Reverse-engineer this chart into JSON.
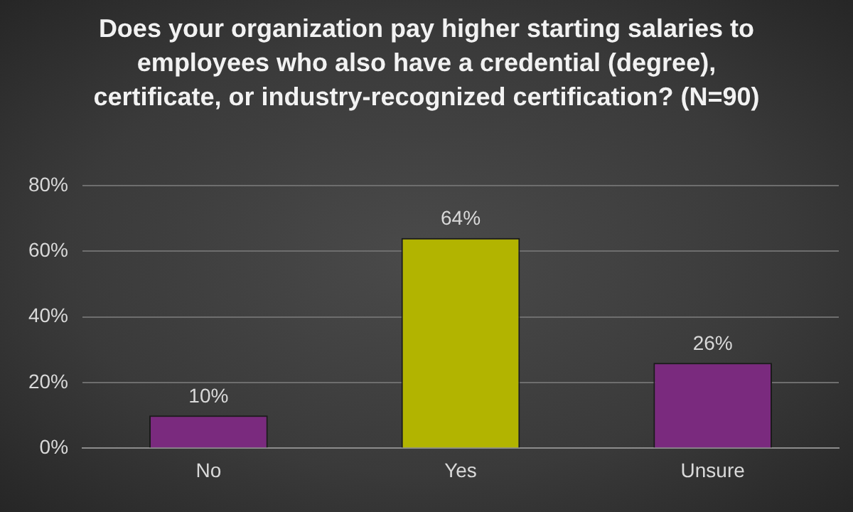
{
  "chart_data": {
    "type": "bar",
    "title": "Does your organization pay higher starting salaries to employees who also have a credential (degree), certificate, or industry-recognized certification? (N=90)",
    "categories": [
      "No",
      "Yes",
      "Unsure"
    ],
    "values": [
      10,
      64,
      26
    ],
    "colors": [
      "#7a2a7e",
      "#b2b400",
      "#7a2a7e"
    ],
    "ylim": [
      0,
      80
    ],
    "yticks": [
      {
        "value": 0,
        "label": "0%"
      },
      {
        "value": 20,
        "label": "20%"
      },
      {
        "value": 40,
        "label": "40%"
      },
      {
        "value": 60,
        "label": "60%"
      },
      {
        "value": 80,
        "label": "80%"
      }
    ],
    "grid": "y",
    "value_labels": [
      "10%",
      "64%",
      "26%"
    ]
  }
}
